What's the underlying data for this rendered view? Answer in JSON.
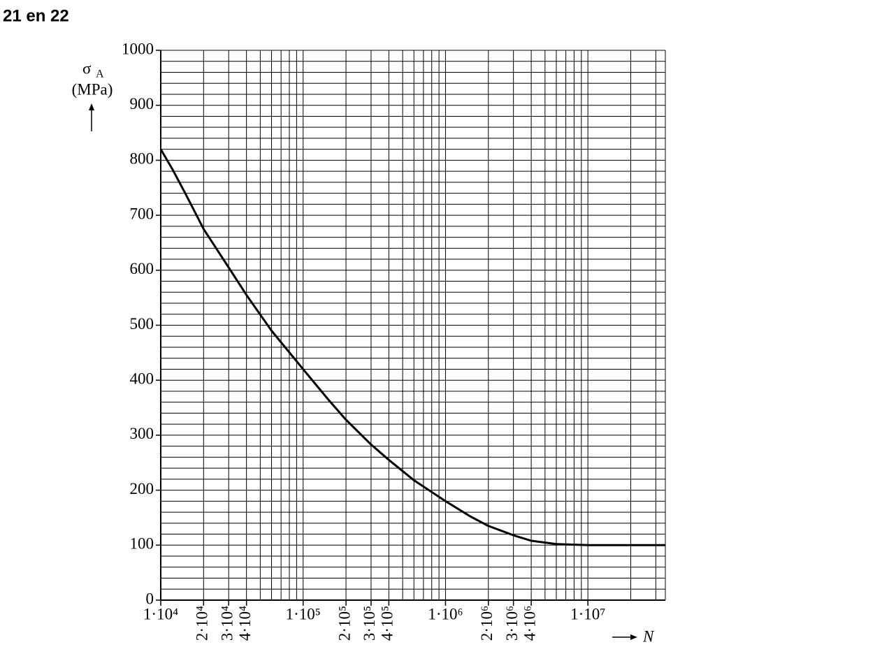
{
  "title": "21 en 22",
  "chart_data": {
    "type": "line",
    "log_x": true,
    "y_symbol": "σ",
    "y_subscript": "A",
    "y_unit": "(MPa)",
    "x_label": "N",
    "x": [
      10000,
      12000,
      15000,
      20000,
      30000,
      40000,
      60000,
      100000,
      150000,
      200000,
      300000,
      400000,
      600000,
      1000000,
      1500000,
      2000000,
      3000000,
      4000000,
      6000000,
      10000000,
      20000000,
      35000000
    ],
    "series": [
      {
        "color": "#000000",
        "values": [
          820,
          785,
          738,
          675,
          605,
          555,
          490,
          420,
          365,
          328,
          283,
          255,
          218,
          180,
          152,
          135,
          118,
          108,
          102,
          100,
          100,
          100
        ]
      }
    ],
    "xlim": [
      10000,
      35000000
    ],
    "xticks": [
      {
        "value": 10000,
        "label": "1·10⁴"
      },
      {
        "value": 20000,
        "label": "2·10⁴"
      },
      {
        "value": 30000,
        "label": "3·10⁴"
      },
      {
        "value": 40000,
        "label": "4·10⁴"
      },
      {
        "value": 100000,
        "label": "1·10⁵"
      },
      {
        "value": 200000,
        "label": "2·10⁵"
      },
      {
        "value": 300000,
        "label": "3·10⁵"
      },
      {
        "value": 400000,
        "label": "4·10⁵"
      },
      {
        "value": 1000000,
        "label": "1·10⁶"
      },
      {
        "value": 2000000,
        "label": "2·10⁶"
      },
      {
        "value": 3000000,
        "label": "3·10⁶"
      },
      {
        "value": 4000000,
        "label": "4·10⁶"
      },
      {
        "value": 10000000,
        "label": "1·10⁷"
      }
    ],
    "ylim": [
      0,
      1000
    ],
    "yticks": [
      0,
      100,
      200,
      300,
      400,
      500,
      600,
      700,
      800,
      900,
      1000
    ],
    "y_minor_step": 20,
    "grid": true
  }
}
